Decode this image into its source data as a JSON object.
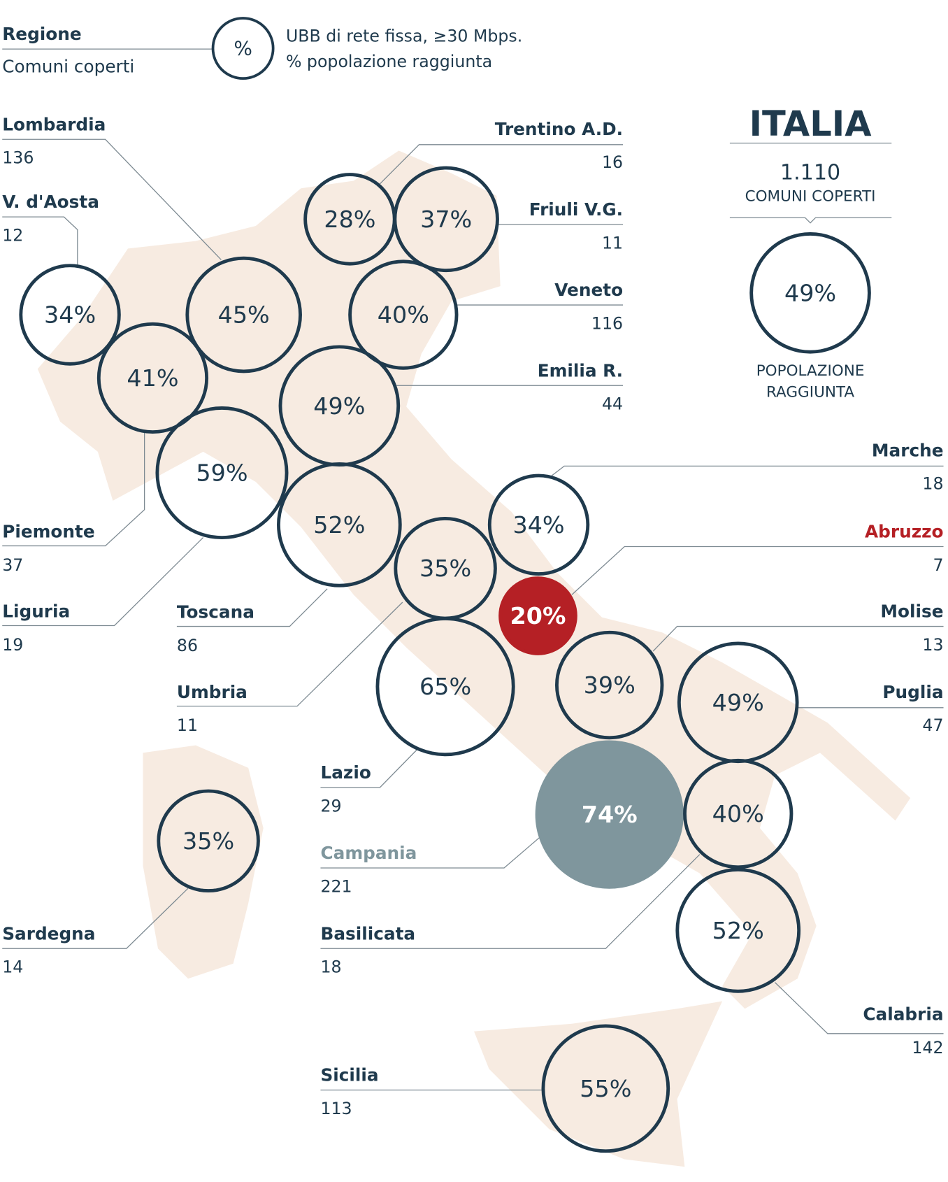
{
  "legend": {
    "region": "Regione",
    "comuni": "Comuni coperti",
    "symbol": "%",
    "line1": "UBB di rete fissa, ≥30 Mbps.",
    "line2": "% popolazione raggiunta"
  },
  "italia": {
    "title": "ITALIA",
    "comuni": "1.110",
    "comuni_label": "COMUNI COPERTI",
    "value": 49,
    "label": "49%",
    "pop_line1": "POPOLAZIONE",
    "pop_line2": "RAGGIUNTA"
  },
  "regions": [
    {
      "name": "Lombardia",
      "comuni": 136,
      "value": 45,
      "label": "45%"
    },
    {
      "name": "V. d'Aosta",
      "comuni": 12,
      "value": 34,
      "label": "34%"
    },
    {
      "name": "Piemonte",
      "comuni": 37,
      "value": 41,
      "label": "41%"
    },
    {
      "name": "Liguria",
      "comuni": 19,
      "value": 59,
      "label": "59%"
    },
    {
      "name": "Toscana",
      "comuni": 86,
      "value": 52,
      "label": "52%"
    },
    {
      "name": "Umbria",
      "comuni": 11,
      "value": 35,
      "label": "35%"
    },
    {
      "name": "Lazio",
      "comuni": 29,
      "value": 65,
      "label": "65%"
    },
    {
      "name": "Campania",
      "comuni": 221,
      "value": 74,
      "label": "74%",
      "color": "#7f969d"
    },
    {
      "name": "Basilicata",
      "comuni": 18,
      "value": 40,
      "label": "40%"
    },
    {
      "name": "Sardegna",
      "comuni": 14,
      "value": 35,
      "label": "35%"
    },
    {
      "name": "Sicilia",
      "comuni": 113,
      "value": 55,
      "label": "55%"
    },
    {
      "name": "Calabria",
      "comuni": 142,
      "value": 52,
      "label": "52%"
    },
    {
      "name": "Puglia",
      "comuni": 47,
      "value": 49,
      "label": "49%"
    },
    {
      "name": "Molise",
      "comuni": 13,
      "value": 39,
      "label": "39%"
    },
    {
      "name": "Abruzzo",
      "comuni": 7,
      "value": 20,
      "label": "20%",
      "color": "#b52025"
    },
    {
      "name": "Marche",
      "comuni": 18,
      "value": 34,
      "label": "34%"
    },
    {
      "name": "Emilia R.",
      "comuni": 44,
      "value": 49,
      "label": "49%"
    },
    {
      "name": "Veneto",
      "comuni": 116,
      "value": 40,
      "label": "40%"
    },
    {
      "name": "Friuli V.G.",
      "comuni": 11,
      "value": 37,
      "label": "37%"
    },
    {
      "name": "Trentino A.D.",
      "comuni": 16,
      "value": 28,
      "label": "28%"
    }
  ]
}
